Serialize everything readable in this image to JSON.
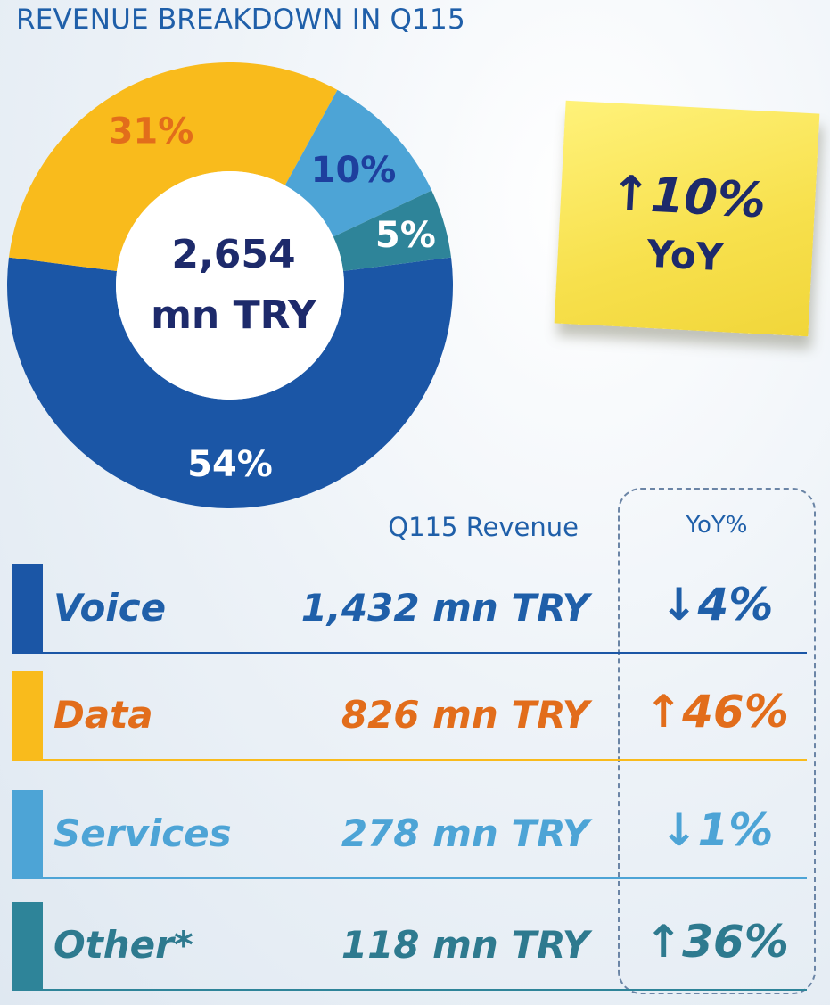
{
  "chart_data": {
    "type": "pie",
    "title": "REVENUE BREAKDOWN IN Q115",
    "center_label": [
      "2,654",
      "mn TRY"
    ],
    "categories": [
      "Voice",
      "Data",
      "Services",
      "Other*"
    ],
    "values": [
      54,
      31,
      10,
      5
    ],
    "value_labels": [
      "54%",
      "31%",
      "10%",
      "5%"
    ],
    "colors": [
      "#1b56a6",
      "#f9bb1c",
      "#4da4d6",
      "#2e8499"
    ],
    "label_colors": [
      "#ffffff",
      "#e26d1b",
      "#1e3f9e",
      "#ffffff"
    ]
  },
  "note": {
    "arrow": "↑",
    "value": "10%",
    "sub": "YoY"
  },
  "table": {
    "revenue_header": "Q115 Revenue",
    "yoy_header": "YoY%",
    "rows": [
      {
        "name": "Voice",
        "revenue": "1,432 mn TRY",
        "arrow": "↓",
        "yoy": "4%",
        "color": "#1b56a6",
        "text_color": "#1f5fa9"
      },
      {
        "name": "Data",
        "revenue": "826 mn TRY",
        "arrow": "↑",
        "yoy": "46%",
        "color": "#f9bb1c",
        "text_color": "#e26d1b"
      },
      {
        "name": "Services",
        "revenue": "278 mn TRY",
        "arrow": "↓",
        "yoy": "1%",
        "color": "#4da4d6",
        "text_color": "#4da4d6"
      },
      {
        "name": "Other*",
        "revenue": "118 mn TRY",
        "arrow": "↑",
        "yoy": "36%",
        "color": "#2e8499",
        "text_color": "#2e7a8f"
      }
    ]
  }
}
